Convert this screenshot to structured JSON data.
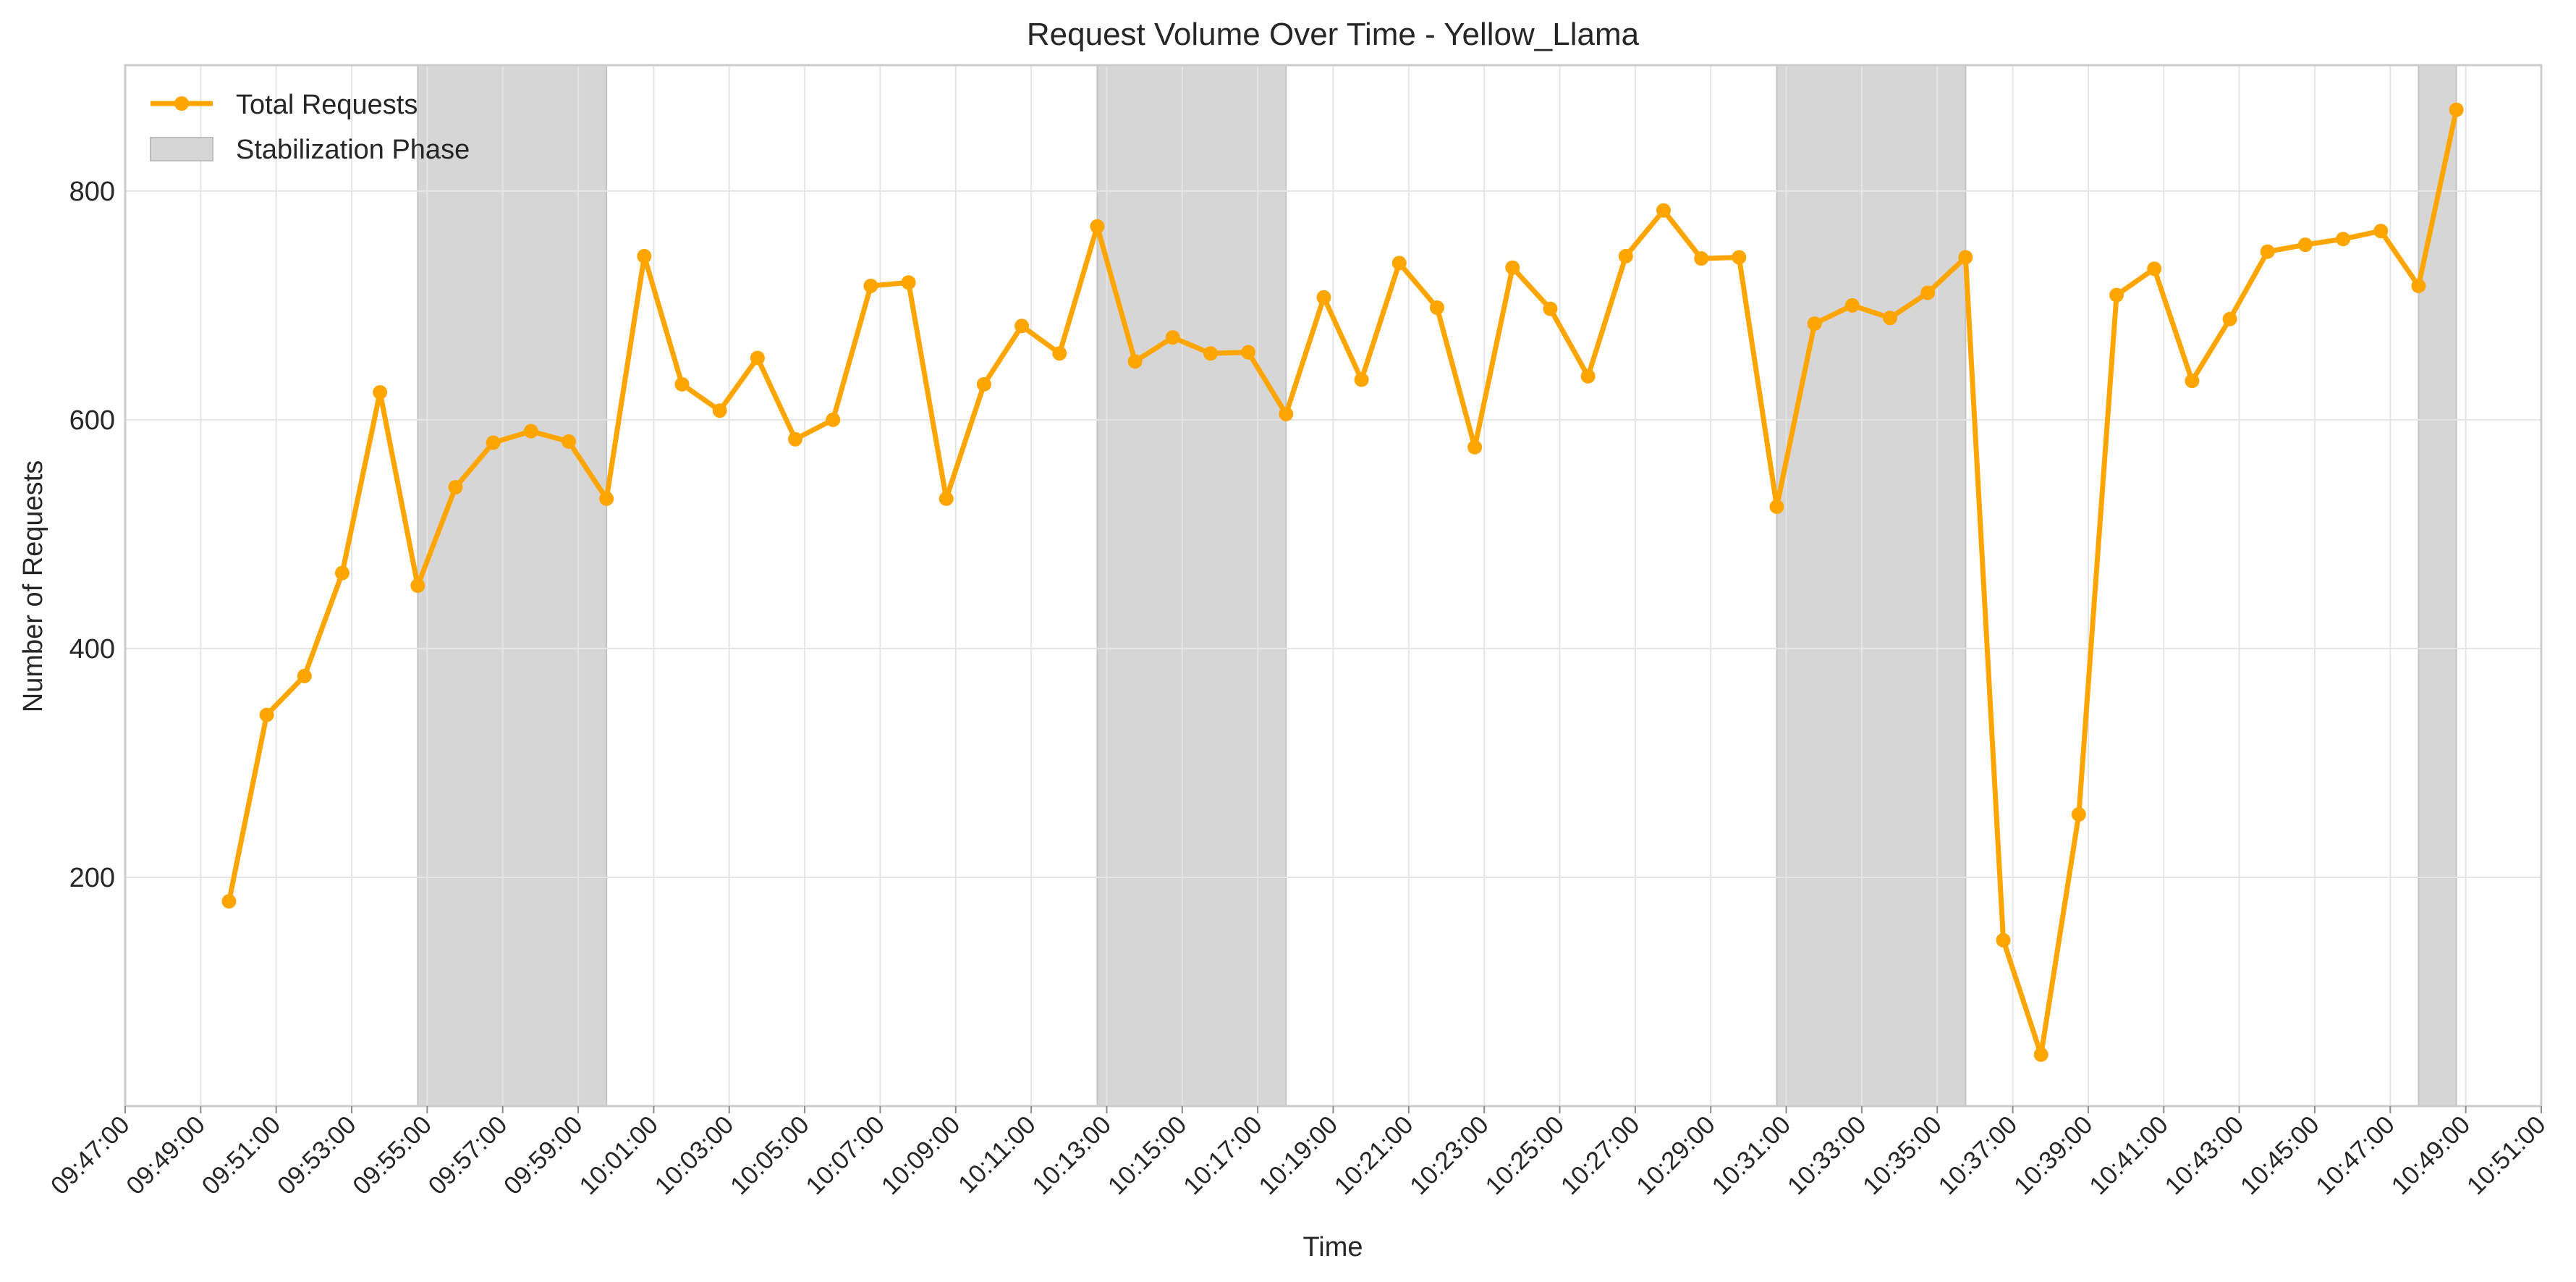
{
  "chart_data": {
    "type": "line",
    "title": "Request Volume Over Time - Yellow_Llama",
    "xlabel": "Time",
    "ylabel": "Number of Requests",
    "x_start": "09:47:00",
    "x_end": "10:51:00",
    "ylim": [
      0,
      910
    ],
    "y_ticks": [
      200,
      400,
      600,
      800
    ],
    "x_ticks": [
      "09:47:00",
      "09:49:00",
      "09:51:00",
      "09:53:00",
      "09:55:00",
      "09:57:00",
      "09:59:00",
      "10:01:00",
      "10:03:00",
      "10:05:00",
      "10:07:00",
      "10:09:00",
      "10:11:00",
      "10:13:00",
      "10:15:00",
      "10:17:00",
      "10:19:00",
      "10:21:00",
      "10:23:00",
      "10:25:00",
      "10:27:00",
      "10:29:00",
      "10:31:00",
      "10:33:00",
      "10:35:00",
      "10:37:00",
      "10:39:00",
      "10:41:00",
      "10:43:00",
      "10:45:00",
      "10:47:00",
      "10:49:00",
      "10:51:00"
    ],
    "grid": true,
    "legend_position": "top-left",
    "series": [
      {
        "name": "Total Requests",
        "color": "#FFA500",
        "x": [
          "09:49:45",
          "09:50:45",
          "09:51:45",
          "09:52:45",
          "09:53:45",
          "09:54:45",
          "09:55:45",
          "09:56:45",
          "09:57:45",
          "09:58:45",
          "09:59:45",
          "10:00:45",
          "10:01:45",
          "10:02:45",
          "10:03:45",
          "10:04:45",
          "10:05:45",
          "10:06:45",
          "10:07:45",
          "10:08:45",
          "10:09:45",
          "10:10:45",
          "10:11:45",
          "10:12:45",
          "10:13:45",
          "10:14:45",
          "10:15:45",
          "10:16:45",
          "10:17:45",
          "10:18:45",
          "10:19:45",
          "10:20:45",
          "10:21:45",
          "10:22:45",
          "10:23:45",
          "10:24:45",
          "10:25:45",
          "10:26:45",
          "10:27:45",
          "10:28:45",
          "10:29:45",
          "10:30:45",
          "10:31:45",
          "10:32:45",
          "10:33:45",
          "10:34:45",
          "10:35:45",
          "10:36:45",
          "10:37:45",
          "10:38:45",
          "10:39:45",
          "10:40:45",
          "10:41:45",
          "10:42:45",
          "10:43:45",
          "10:44:45",
          "10:45:45",
          "10:46:45",
          "10:47:45",
          "10:48:45"
        ],
        "values": [
          179,
          342,
          376,
          466,
          624,
          455,
          541,
          580,
          590,
          581,
          531,
          743,
          631,
          608,
          654,
          583,
          600,
          717,
          720,
          531,
          631,
          682,
          658,
          769,
          651,
          672,
          658,
          659,
          605,
          707,
          635,
          737,
          698,
          576,
          733,
          697,
          638,
          743,
          783,
          741,
          742,
          524,
          684,
          700,
          689,
          711,
          742,
          145,
          45,
          255,
          709,
          732,
          634,
          688,
          747,
          753,
          758,
          765,
          717,
          871
        ]
      }
    ],
    "shaded_regions": {
      "name": "Stabilization Phase",
      "color": "#d6d6d6",
      "ranges": [
        [
          "09:54:45",
          "09:59:45"
        ],
        [
          "10:12:45",
          "10:17:45"
        ],
        [
          "10:30:45",
          "10:35:45"
        ],
        [
          "10:47:45",
          "10:48:45"
        ]
      ]
    }
  }
}
